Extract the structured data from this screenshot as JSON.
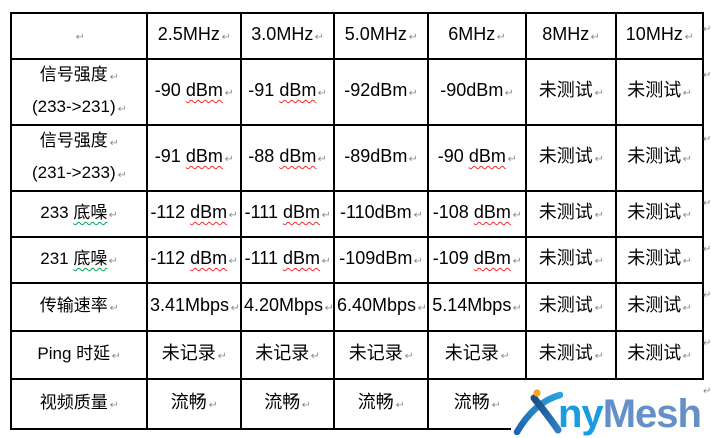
{
  "marks": {
    "cell_end": "↵",
    "row_end": "↵"
  },
  "colors": {
    "border": "#000000",
    "wavy_red": "#ff2a2a",
    "wavy_green": "#00a550",
    "mark_gray": "#8a8a8a",
    "logo_ny": "#1b9ce0",
    "logo_mesh": "#6590c6",
    "logo_dot": "#f7a41d",
    "logo_stroke_dark": "#1c66b0",
    "logo_stroke_light": "#2392d0"
  },
  "logo": {
    "ny": "ny",
    "mesh": "Mesh",
    "brand": "AnyMesh"
  },
  "table": {
    "rows": [
      {
        "cells": [
          {
            "seg": []
          },
          {
            "seg": [
              {
                "t": "2.5MHz"
              }
            ]
          },
          {
            "seg": [
              {
                "t": "3.0MHz"
              }
            ]
          },
          {
            "seg": [
              {
                "t": "5.0MHz"
              }
            ]
          },
          {
            "seg": [
              {
                "t": "6MHz"
              }
            ]
          },
          {
            "seg": [
              {
                "t": "8MHz"
              }
            ]
          },
          {
            "seg": [
              {
                "t": "10MHz"
              }
            ]
          }
        ]
      },
      {
        "cells": [
          {
            "lines": [
              {
                "seg": [
                  {
                    "t": "信号强度"
                  }
                ]
              },
              {
                "seg": [
                  {
                    "t": "(233->231)"
                  }
                ]
              }
            ]
          },
          {
            "seg": [
              {
                "t": "-90 "
              },
              {
                "t": "dBm",
                "w": "red"
              }
            ]
          },
          {
            "seg": [
              {
                "t": "-91 "
              },
              {
                "t": "dBm",
                "w": "red"
              }
            ]
          },
          {
            "seg": [
              {
                "t": "-92dBm"
              }
            ]
          },
          {
            "seg": [
              {
                "t": "-90dBm"
              }
            ]
          },
          {
            "seg": [
              {
                "t": "未测试"
              }
            ]
          },
          {
            "seg": [
              {
                "t": "未测试"
              }
            ]
          }
        ]
      },
      {
        "cells": [
          {
            "lines": [
              {
                "seg": [
                  {
                    "t": "信号强度"
                  }
                ]
              },
              {
                "seg": [
                  {
                    "t": "(231->233)"
                  }
                ]
              }
            ]
          },
          {
            "seg": [
              {
                "t": "-91 "
              },
              {
                "t": "dBm",
                "w": "red"
              }
            ]
          },
          {
            "seg": [
              {
                "t": "-88 "
              },
              {
                "t": "dBm",
                "w": "red"
              }
            ]
          },
          {
            "seg": [
              {
                "t": "-89dBm"
              }
            ]
          },
          {
            "seg": [
              {
                "t": "-90 "
              },
              {
                "t": "dBm",
                "w": "red"
              }
            ]
          },
          {
            "seg": [
              {
                "t": "未测试"
              }
            ]
          },
          {
            "seg": [
              {
                "t": "未测试"
              }
            ]
          }
        ]
      },
      {
        "cells": [
          {
            "seg": [
              {
                "t": "233 "
              },
              {
                "t": "底噪",
                "w": "green"
              }
            ]
          },
          {
            "seg": [
              {
                "t": "-112 "
              },
              {
                "t": "dBm",
                "w": "red"
              }
            ]
          },
          {
            "seg": [
              {
                "t": "-111 "
              },
              {
                "t": "dBm",
                "w": "red"
              }
            ]
          },
          {
            "seg": [
              {
                "t": "-110dBm"
              }
            ]
          },
          {
            "seg": [
              {
                "t": "-108 "
              },
              {
                "t": "dBm",
                "w": "red"
              }
            ]
          },
          {
            "seg": [
              {
                "t": "未测试"
              }
            ]
          },
          {
            "seg": [
              {
                "t": "未测试"
              }
            ]
          }
        ]
      },
      {
        "cells": [
          {
            "seg": [
              {
                "t": "231 "
              },
              {
                "t": "底噪",
                "w": "green"
              }
            ]
          },
          {
            "seg": [
              {
                "t": "-112 "
              },
              {
                "t": "dBm",
                "w": "red"
              }
            ]
          },
          {
            "seg": [
              {
                "t": "-111 "
              },
              {
                "t": "dBm",
                "w": "red"
              }
            ]
          },
          {
            "seg": [
              {
                "t": "-109dBm"
              }
            ]
          },
          {
            "seg": [
              {
                "t": "-109 "
              },
              {
                "t": "dBm",
                "w": "red"
              }
            ]
          },
          {
            "seg": [
              {
                "t": "未测试"
              }
            ]
          },
          {
            "seg": [
              {
                "t": "未测试"
              }
            ]
          }
        ]
      },
      {
        "cells": [
          {
            "seg": [
              {
                "t": "传输速率"
              }
            ]
          },
          {
            "seg": [
              {
                "t": "3.41Mbps"
              }
            ]
          },
          {
            "seg": [
              {
                "t": "4.20Mbps"
              }
            ]
          },
          {
            "seg": [
              {
                "t": "6.40Mbps"
              }
            ]
          },
          {
            "seg": [
              {
                "t": "5.14Mbps"
              }
            ]
          },
          {
            "seg": [
              {
                "t": "未测试"
              }
            ]
          },
          {
            "seg": [
              {
                "t": "未测试"
              }
            ]
          }
        ]
      },
      {
        "cells": [
          {
            "seg": [
              {
                "t": "Ping 时延"
              }
            ]
          },
          {
            "seg": [
              {
                "t": "未记录"
              }
            ]
          },
          {
            "seg": [
              {
                "t": "未记录"
              }
            ]
          },
          {
            "seg": [
              {
                "t": "未记录"
              }
            ]
          },
          {
            "seg": [
              {
                "t": "未记录"
              }
            ]
          },
          {
            "seg": [
              {
                "t": "未测试"
              }
            ]
          },
          {
            "seg": [
              {
                "t": "未测试"
              }
            ]
          }
        ]
      },
      {
        "cells": [
          {
            "seg": [
              {
                "t": "视频质量"
              }
            ]
          },
          {
            "seg": [
              {
                "t": "流畅"
              }
            ]
          },
          {
            "seg": [
              {
                "t": "流畅"
              }
            ]
          },
          {
            "seg": [
              {
                "t": "流畅"
              }
            ]
          },
          {
            "seg": [
              {
                "t": "流畅"
              }
            ]
          },
          {
            "seg": []
          },
          {
            "seg": []
          }
        ]
      }
    ]
  }
}
